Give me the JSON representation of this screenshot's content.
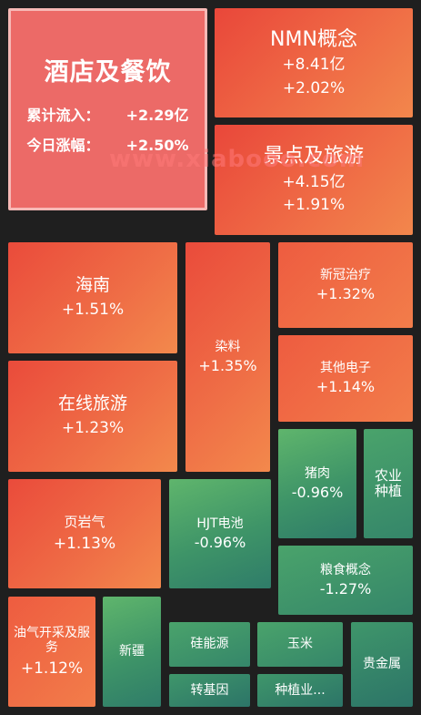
{
  "featured": {
    "title": "酒店及餐饮",
    "inflow_label": "累计流入：",
    "inflow_value": "+2.29亿",
    "change_label": "今日涨幅：",
    "change_value": "+2.50%"
  },
  "tiles": {
    "nmn": {
      "name": "NMN概念",
      "flow": "+8.41亿",
      "change": "+2.02%"
    },
    "scenic": {
      "name": "景点及旅游",
      "flow": "+4.15亿",
      "change": "+1.91%"
    },
    "hainan": {
      "name": "海南",
      "change": "+1.51%"
    },
    "dye": {
      "name": "染料",
      "change": "+1.35%"
    },
    "covid": {
      "name": "新冠治疗",
      "change": "+1.32%"
    },
    "other_elec": {
      "name": "其他电子",
      "change": "+1.14%"
    },
    "online_travel": {
      "name": "在线旅游",
      "change": "+1.23%"
    },
    "pork": {
      "name": "猪肉",
      "change": "-0.96%"
    },
    "agri": {
      "name": "农业种植"
    },
    "shale": {
      "name": "页岩气",
      "change": "+1.13%"
    },
    "hjt": {
      "name": "HJT电池",
      "change": "-0.96%"
    },
    "grain": {
      "name": "粮食概念",
      "change": "-1.27%"
    },
    "oil": {
      "name": "油气开采及服务",
      "change": "+1.12%"
    },
    "xinjiang": {
      "name": "新疆"
    },
    "silicon": {
      "name": "硅能源"
    },
    "corn": {
      "name": "玉米"
    },
    "metal": {
      "name": "贵金属"
    },
    "gmo": {
      "name": "转基因"
    },
    "planting": {
      "name": "种植业..."
    }
  },
  "watermark": "www.xiabooo.com"
}
